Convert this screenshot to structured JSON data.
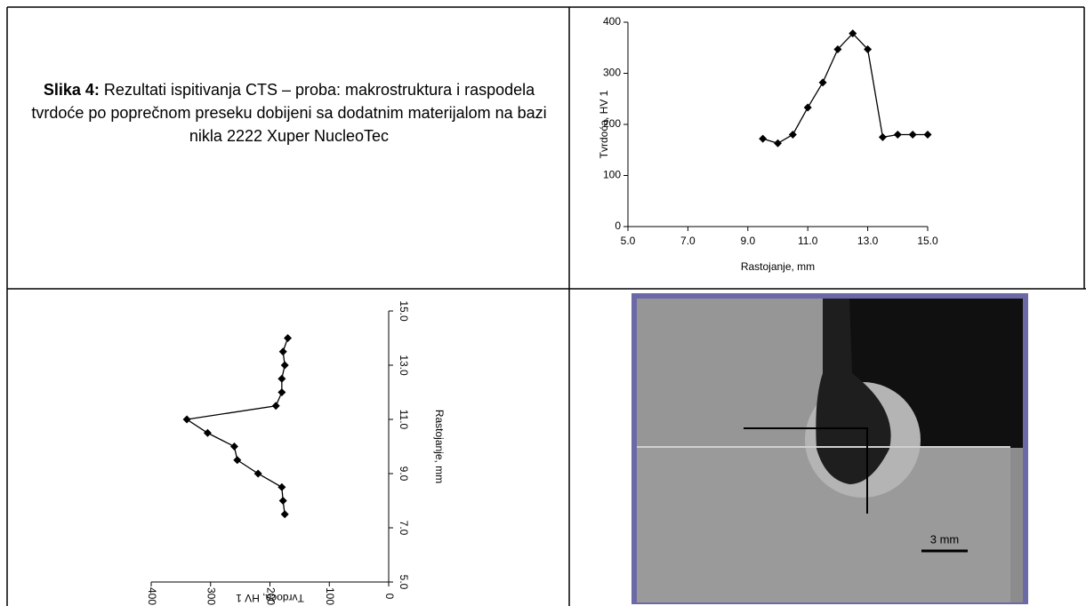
{
  "caption": {
    "label": "Slika 4:",
    "text": "Rezultati ispitivanja CTS – proba: makrostruktura i raspodela tvrdoće po poprečnom preseku dobijeni sa dodatnim materijalom na bazi nikla 2222 Xuper NucleoTec"
  },
  "chart_data": [
    {
      "type": "line",
      "xlabel": "Rastojanje, mm",
      "ylabel": "Tvrdoća, HV 1",
      "x": [
        9.5,
        10,
        10.5,
        11,
        11.5,
        12,
        12.5,
        13,
        13.5,
        14,
        14.5,
        15
      ],
      "values": [
        172,
        163,
        180,
        233,
        282,
        347,
        378,
        347,
        175,
        180,
        180,
        180
      ],
      "color": "#000000",
      "xlim": [
        5,
        15
      ],
      "xticks": [
        {
          "value": 5,
          "label": "5.0"
        },
        {
          "value": 7,
          "label": "7.0"
        },
        {
          "value": 9,
          "label": "9.0"
        },
        {
          "value": 11,
          "label": "11.0"
        },
        {
          "value": 13,
          "label": "13.0"
        },
        {
          "value": 15,
          "label": "15.0"
        }
      ],
      "ylim": [
        0,
        400
      ],
      "yticks": [
        0,
        100,
        200,
        300,
        400
      ]
    },
    {
      "type": "line",
      "orientation": "rotated",
      "xlabel": "Rastojanje, mm",
      "ylabel": "Tvrdoća, HV 1",
      "x": [
        7.5,
        8,
        8.5,
        9,
        9.5,
        10,
        10.5,
        11,
        11.5,
        12,
        12.5,
        13,
        13.5,
        14
      ],
      "values": [
        175,
        178,
        180,
        220,
        255,
        260,
        305,
        340,
        190,
        180,
        180,
        175,
        178,
        170
      ],
      "color": "#000000",
      "xlim": [
        5,
        15
      ],
      "xticks": [
        {
          "value": 5,
          "label": "5.0"
        },
        {
          "value": 7,
          "label": "7.0"
        },
        {
          "value": 9,
          "label": "9.0"
        },
        {
          "value": 11,
          "label": "11.0"
        },
        {
          "value": 13,
          "label": "13.0"
        },
        {
          "value": 15,
          "label": "15.0"
        }
      ],
      "ylim": [
        0,
        400
      ],
      "yticks": [
        0,
        100,
        200,
        300,
        400
      ]
    }
  ],
  "image": {
    "scale_label": "3 mm"
  }
}
